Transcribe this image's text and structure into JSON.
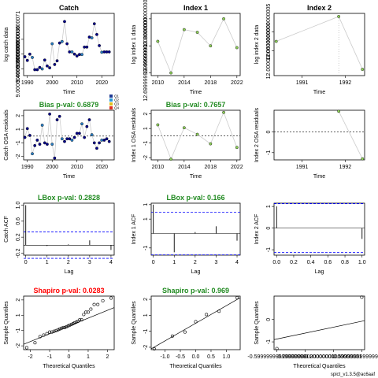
{
  "version_label": "spict_v1.3.5@ac6aaf",
  "colors": {
    "title_black": "#000000",
    "title_green": "#228b22",
    "title_red": "#ff0000",
    "reference_line": "#0000ff",
    "connector": "#cccccc",
    "point_fill": "#00008b",
    "point_fill_green": "#8fd15a"
  },
  "chart_data": [
    {
      "name": "catch-data",
      "type": "line",
      "title": "Catch",
      "title_color": "black",
      "xlabel": "Time",
      "ylabel": "log catch data",
      "xlim": [
        1988.5,
        2025
      ],
      "ylim": [
        8.82,
        10.5
      ],
      "xticks": [
        1990,
        2000,
        2010,
        2020
      ],
      "yticks": [
        9.0,
        9.4,
        9.8
      ],
      "series_color": "season",
      "x": [
        1989,
        1990,
        1991,
        1992,
        1993,
        1994,
        1995,
        1996,
        1997,
        1998,
        1999,
        2000,
        2001,
        2002,
        2003,
        2004,
        2005,
        2006,
        2007,
        2008,
        2009,
        2010,
        2011,
        2012,
        2013,
        2014,
        2015,
        2016,
        2017,
        2018,
        2019,
        2020,
        2021,
        2022,
        2023
      ],
      "y": [
        9.33,
        9.23,
        9.4,
        9.31,
        8.98,
        8.98,
        9.04,
        9.0,
        9.24,
        9.08,
        9.03,
        9.68,
        9.12,
        9.22,
        9.7,
        9.74,
        10.28,
        9.68,
        9.46,
        9.46,
        9.4,
        9.35,
        9.39,
        9.39,
        9.59,
        9.59,
        9.86,
        9.84,
        10.22,
        9.93,
        9.63,
        9.45,
        9.46,
        9.46,
        9.46
      ]
    },
    {
      "name": "index-1-data",
      "type": "line",
      "title": "Index 1",
      "title_color": "black",
      "xlabel": "Time",
      "ylabel": "log index 1 data",
      "xlim": [
        2009,
        2022.5
      ],
      "ylim": [
        12.67,
        13.36
      ],
      "xticks": [
        2010,
        2014,
        2018,
        2022
      ],
      "yticks": [
        12.7,
        13.0,
        13.3
      ],
      "series_color": "green",
      "x": [
        2010,
        2012,
        2014,
        2016,
        2018,
        2020,
        2022
      ],
      "y": [
        13.05,
        12.7,
        13.18,
        13.15,
        13.0,
        13.3,
        12.98
      ]
    },
    {
      "name": "index-2-data",
      "type": "line",
      "title": "Index 2",
      "title_color": "black",
      "xlabel": "Time",
      "ylabel": "log index 2 data",
      "xlim": [
        1989.85,
        1991.95
      ],
      "ylim": [
        11.92,
        12.12
      ],
      "xticks": [
        1990.5,
        1991.5
      ],
      "yticks": [
        12.0,
        12.06
      ],
      "series_color": "green",
      "vline": 1991.35,
      "x": [
        1989.9,
        1991.35,
        1991.9
      ],
      "y": [
        12.03,
        12.11,
        11.94
      ]
    },
    {
      "name": "catch-osa-residuals",
      "type": "line",
      "title": "Bias p-val: 0.6879",
      "title_color": "green",
      "xlabel": "Time",
      "ylabel": "Catch OSA residuals",
      "xlim": [
        1988.5,
        2025
      ],
      "ylim": [
        -1.75,
        1.9
      ],
      "xticks": [
        1990,
        2000,
        2010,
        2020
      ],
      "yticks": [
        -1.5,
        -0.5,
        0.5,
        1.5
      ],
      "series_color": "season",
      "hline": 0,
      "legend": [
        "Q1",
        "Q2",
        "Q3",
        "Q4"
      ],
      "x": [
        1989,
        1990,
        1991,
        1992,
        1993,
        1994,
        1995,
        1996,
        1997,
        1998,
        1999,
        2000,
        2001,
        2002,
        2003,
        2004,
        2005,
        2006,
        2007,
        2008,
        2009,
        2010,
        2011,
        2012,
        2013,
        2014,
        2015,
        2016,
        2017,
        2018,
        2019,
        2020,
        2021,
        2022,
        2023
      ],
      "y": [
        -0.1,
        0.55,
        0.05,
        -1.3,
        -0.7,
        -0.3,
        -0.6,
        0.8,
        -0.5,
        -0.6,
        1.62,
        -0.6,
        -1.62,
        1.2,
        1.45,
        -0.2,
        -0.4,
        -0.2,
        -0.2,
        -0.3,
        -0.1,
        0.2,
        0.2,
        0.9,
        -0.1,
        0.7,
        1.2,
        0.1,
        -0.5,
        -0.9,
        -0.5,
        -0.3,
        -0.3,
        -0.2,
        -0.4
      ]
    },
    {
      "name": "index-1-osa-residuals",
      "type": "line",
      "title": "Bias p-val: 0.7657",
      "title_color": "green",
      "xlabel": "Time",
      "ylabel": "Index 1 OSA residuals",
      "xlim": [
        2009,
        2022.5
      ],
      "ylim": [
        -1.65,
        1.75
      ],
      "xticks": [
        2010,
        2014,
        2018,
        2022
      ],
      "yticks": [
        -1.5,
        -0.5,
        0.5,
        1.5
      ],
      "series_color": "green",
      "hline": 0,
      "x": [
        2010,
        2012,
        2014,
        2016,
        2018,
        2020,
        2022
      ],
      "y": [
        0.75,
        -1.6,
        0.55,
        0.1,
        -0.55,
        1.6,
        -0.8
      ]
    },
    {
      "name": "index-2-osa-residuals",
      "type": "line",
      "title": "",
      "title_color": "green",
      "xlabel": "Time",
      "ylabel": "Index 2 OSA residuals",
      "xlim": [
        1989.85,
        1991.95
      ],
      "ylim": [
        -1.35,
        1.05
      ],
      "xticks": [
        1990.5,
        1991.5
      ],
      "yticks": [
        -1,
        0
      ],
      "series_color": "green",
      "hline": 0,
      "x": [
        1991.35,
        1991.9
      ],
      "y": [
        1.0,
        -1.3
      ]
    },
    {
      "name": "catch-acf",
      "type": "bar",
      "title": "LBox p-val: 0.2828",
      "title_color": "green",
      "xlabel": "Lag",
      "ylabel": "Catch ACF",
      "xlim": [
        -0.1,
        4.15
      ],
      "ylim": [
        -0.25,
        1.05
      ],
      "xticks": [
        0,
        1,
        2,
        3,
        4
      ],
      "yticks": [
        -0.2,
        0.2,
        0.6,
        1.0
      ],
      "lags": [
        0,
        1,
        2,
        3,
        4
      ],
      "values": [
        1.0,
        -0.02,
        0.02,
        0.12,
        -0.12
      ],
      "ci": [
        0.33,
        -0.33
      ]
    },
    {
      "name": "index-1-acf",
      "type": "bar",
      "title": "LBox p-val: 0.166",
      "title_color": "green",
      "xlabel": "Lag",
      "ylabel": "Index 1 ACF",
      "xlim": [
        -0.1,
        4.15
      ],
      "ylim": [
        -0.75,
        1.05
      ],
      "xticks": [
        0,
        1,
        2,
        3,
        4
      ],
      "yticks": [
        -0.5,
        0.5,
        1.0
      ],
      "lags": [
        0,
        1,
        2,
        3,
        4
      ],
      "values": [
        1.0,
        -0.65,
        0.05,
        0.25,
        -0.25
      ],
      "ci": [
        0.74,
        -0.74
      ]
    },
    {
      "name": "index-2-acf",
      "type": "bar",
      "title": "",
      "title_color": "green",
      "xlabel": "Lag",
      "ylabel": "Index 2 ACF",
      "xlim": [
        -0.03,
        1.03
      ],
      "ylim": [
        -1.25,
        1.15
      ],
      "xticks": [
        0.0,
        0.2,
        0.4,
        0.6,
        0.8,
        1.0
      ],
      "yticks": [
        -1.0,
        0.0,
        1.0
      ],
      "lags": [
        0,
        1
      ],
      "values": [
        1.0,
        -0.5
      ],
      "ci": [
        1.13,
        -1.13
      ]
    },
    {
      "name": "catch-qq",
      "type": "scatter",
      "title": "Shapiro p-val: 0.0283",
      "title_color": "red",
      "xlabel": "Theoretical Quantiles",
      "ylabel": "Sample Quantiles",
      "xlim": [
        -2.35,
        2.35
      ],
      "ylim": [
        -1.75,
        1.75
      ],
      "xticks": [
        -2,
        -1,
        0,
        1,
        2
      ],
      "yticks": [
        -1.5,
        -0.5,
        0.5,
        1.5
      ],
      "x": [
        -2.19,
        -1.76,
        -1.5,
        -1.31,
        -1.14,
        -1.0,
        -0.88,
        -0.77,
        -0.66,
        -0.56,
        -0.47,
        -0.38,
        -0.29,
        -0.21,
        -0.13,
        -0.04,
        0.04,
        0.13,
        0.21,
        0.29,
        0.38,
        0.47,
        0.56,
        0.66,
        0.77,
        0.88,
        1.0,
        1.14,
        1.31,
        1.5,
        1.76,
        2.19
      ],
      "y": [
        -1.62,
        -1.3,
        -0.9,
        -0.8,
        -0.7,
        -0.6,
        -0.6,
        -0.55,
        -0.5,
        -0.45,
        -0.4,
        -0.35,
        -0.3,
        -0.3,
        -0.25,
        -0.2,
        -0.15,
        -0.1,
        -0.05,
        0.0,
        0.05,
        0.1,
        0.2,
        0.2,
        0.55,
        0.7,
        0.7,
        0.9,
        1.2,
        1.2,
        1.45,
        1.62
      ],
      "qq_line": [
        [
          -2.35,
          -1.4
        ],
        [
          2.35,
          1.0
        ]
      ]
    },
    {
      "name": "index-1-qq",
      "type": "scatter",
      "title": "Shapiro p-val: 0.969",
      "title_color": "green",
      "xlabel": "Theoretical Quantiles",
      "ylabel": "Sample Quantiles",
      "xlim": [
        -1.45,
        1.45
      ],
      "ylim": [
        -1.65,
        1.7
      ],
      "xticks": [
        -1.0,
        -0.5,
        0.0,
        0.5,
        1.0
      ],
      "yticks": [
        -1.5,
        -0.5,
        0.5,
        1.5
      ],
      "x": [
        -1.35,
        -0.76,
        -0.35,
        0.0,
        0.35,
        0.76,
        1.35
      ],
      "y": [
        -1.6,
        -0.8,
        -0.55,
        0.1,
        0.55,
        0.75,
        1.6
      ],
      "qq_line": [
        [
          -1.45,
          -1.6
        ],
        [
          1.45,
          1.6
        ]
      ]
    },
    {
      "name": "index-2-qq",
      "type": "scatter",
      "title": "",
      "title_color": "green",
      "xlabel": "Theoretical Quantiles",
      "ylabel": "Sample Quantiles",
      "xlim": [
        -0.64,
        0.64
      ],
      "ylim": [
        -1.35,
        1.05
      ],
      "xticks": [
        -0.6,
        -0.2,
        0.2,
        0.6
      ],
      "yticks": [
        -1,
        0
      ],
      "x": [
        -0.6,
        0.6
      ],
      "y": [
        -1.3,
        1.0
      ],
      "qq_line": [
        [
          -0.64,
          -0.9
        ],
        [
          0.64,
          -0.05
        ]
      ]
    }
  ]
}
